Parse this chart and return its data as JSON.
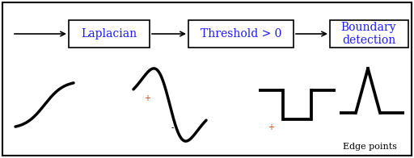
{
  "bg_color": "#ffffff",
  "border_color": "#000000",
  "box_color": "#ffffff",
  "box_edge_color": "#000000",
  "box1_text": "Laplacian",
  "box2_text": "Threshold > 0",
  "box3_text": "Boundary\ndetection",
  "arrow_color": "#000000",
  "label_plus_color": "#cc4400",
  "label_minus_color": "#000000",
  "edge_points_text": "Edge points",
  "curve_color": "#000000",
  "lw": 2.2
}
